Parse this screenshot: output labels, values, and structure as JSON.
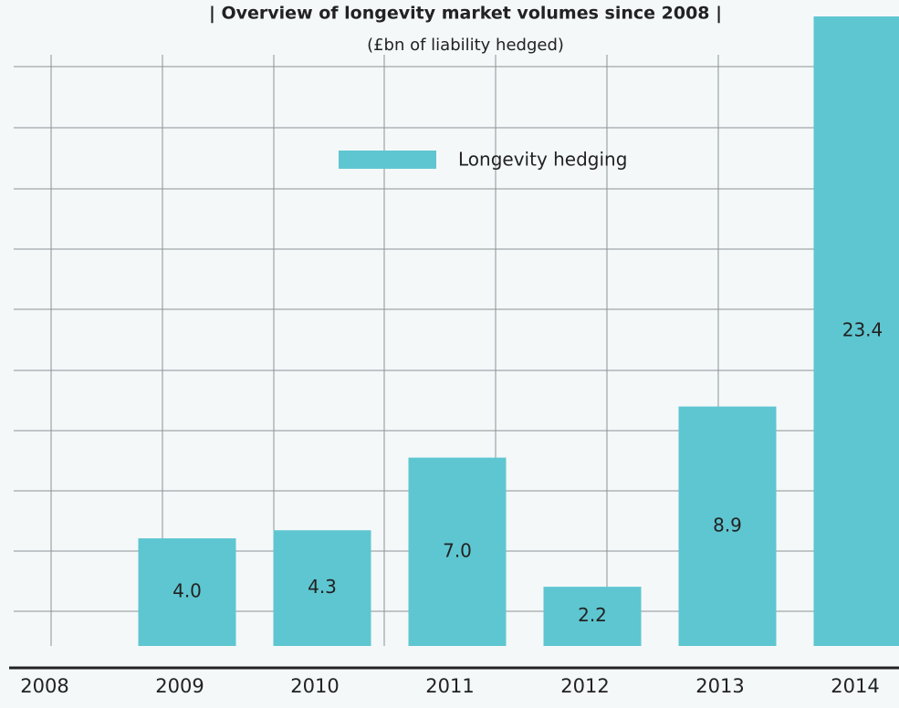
{
  "chart_data": {
    "type": "bar",
    "title": "| Overview of longevity market volumes since 2008 |",
    "subtitle": "(£bn of liability hedged)",
    "categories": [
      "2008",
      "2009",
      "2010",
      "2011",
      "2012",
      "2013",
      "2014"
    ],
    "series": [
      {
        "name": "Longevity hedging",
        "color": "#5ec6d1",
        "values": [
          null,
          4.0,
          4.3,
          7.0,
          2.2,
          8.9,
          23.4
        ],
        "value_labels": [
          null,
          "4.0",
          "4.3",
          "7.0",
          "2.2",
          "8.9",
          "23.4"
        ]
      }
    ],
    "ylim": [
      0,
      23.4
    ]
  }
}
